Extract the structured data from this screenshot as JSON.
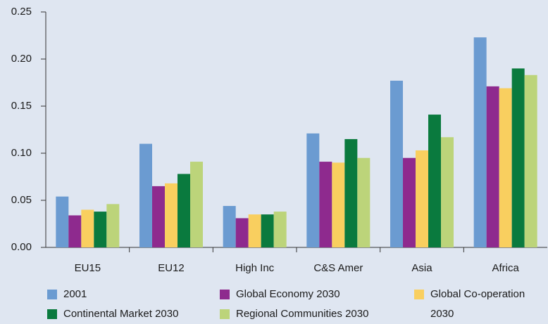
{
  "chart_data": {
    "type": "bar",
    "categories": [
      "EU15",
      "EU12",
      "High Inc",
      "C&S Amer",
      "Asia",
      "Africa"
    ],
    "series": [
      {
        "name": "2001",
        "color": "#6b9bd1",
        "values": [
          0.054,
          0.11,
          0.044,
          0.121,
          0.177,
          0.223
        ]
      },
      {
        "name": "Global Economy 2030",
        "color": "#8e2a8e",
        "values": [
          0.034,
          0.065,
          0.031,
          0.091,
          0.095,
          0.171
        ]
      },
      {
        "name": "Global Co-operation 2030",
        "color": "#f9cf5f",
        "values": [
          0.04,
          0.068,
          0.035,
          0.09,
          0.103,
          0.169
        ]
      },
      {
        "name": "Continental Market 2030",
        "color": "#0a7a3e",
        "values": [
          0.038,
          0.078,
          0.035,
          0.115,
          0.141,
          0.19
        ]
      },
      {
        "name": "Regional Communities 2030",
        "color": "#bcd47a",
        "values": [
          0.046,
          0.091,
          0.038,
          0.095,
          0.117,
          0.183
        ]
      }
    ],
    "ylim": [
      0,
      0.25
    ],
    "yticks": [
      {
        "value": 0,
        "label": "0.00"
      },
      0.05,
      {
        "value": 0.1,
        "label": "0.10"
      },
      0.15,
      {
        "value": 0.2,
        "label": "0.20"
      },
      0.25
    ],
    "grid": false,
    "legend": "bottom"
  }
}
